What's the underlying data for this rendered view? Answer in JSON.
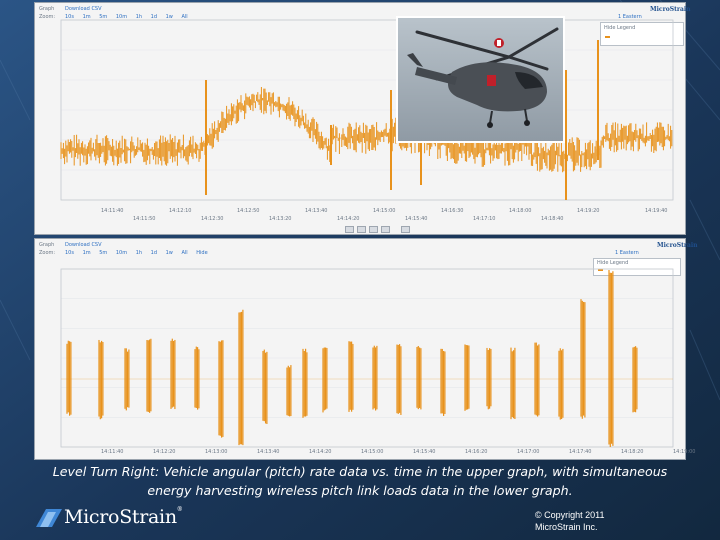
{
  "colors": {
    "background": "#1c3a5e",
    "signal": "#e8921c",
    "panel": "#f4f4f4",
    "link": "#2d6fc2"
  },
  "top_graph": {
    "graph_label": "Graph",
    "download_label": "Download CSV",
    "zoom_label": "Zoom:",
    "zoom_options": [
      "10s",
      "1m",
      "5m",
      "10m",
      "1h",
      "1d",
      "1w",
      "All"
    ],
    "legend_title": "Hide Legend",
    "timezone_label": "1 Eastern",
    "x_ticks_row1": [
      "14:11:40",
      "14:12:10",
      "14:12:50",
      "14:13:40",
      "14:15:00",
      "14:16:30",
      "14:18:00",
      "14:19:20",
      "14:19:40"
    ],
    "x_ticks_row2": [
      "14:11:50",
      "14:12:30",
      "14:13:20",
      "14:14:20",
      "14:15:40",
      "14:17:10",
      "14:18:40"
    ]
  },
  "bottom_graph": {
    "graph_label": "Graph",
    "download_label": "Download CSV",
    "zoom_label": "Zoom:",
    "zoom_options": [
      "10s",
      "1m",
      "5m",
      "10m",
      "1h",
      "1d",
      "1w",
      "All",
      "Hide"
    ],
    "timezone_label": "1 Eastern",
    "legend_title": "Hide Legend",
    "x_ticks": [
      "14:11:40",
      "14:12:20",
      "14:13:00",
      "14:13:40",
      "14:14:20",
      "14:15:00",
      "14:15:40",
      "14:16:20",
      "14:17:00",
      "14:17:40",
      "14:18:20",
      "14:19:00"
    ]
  },
  "caption": {
    "line1": "Level Turn Right:  Vehicle angular (pitch) rate data vs. time in the upper graph, with simultaneous",
    "line2": "energy harvesting wireless pitch link loads data in the lower graph."
  },
  "footer": {
    "logo_text": "MicroStrain",
    "logo_mark": "®",
    "copyright_line1": "© Copyright 2011",
    "copyright_line2": "MicroStrain Inc."
  }
}
